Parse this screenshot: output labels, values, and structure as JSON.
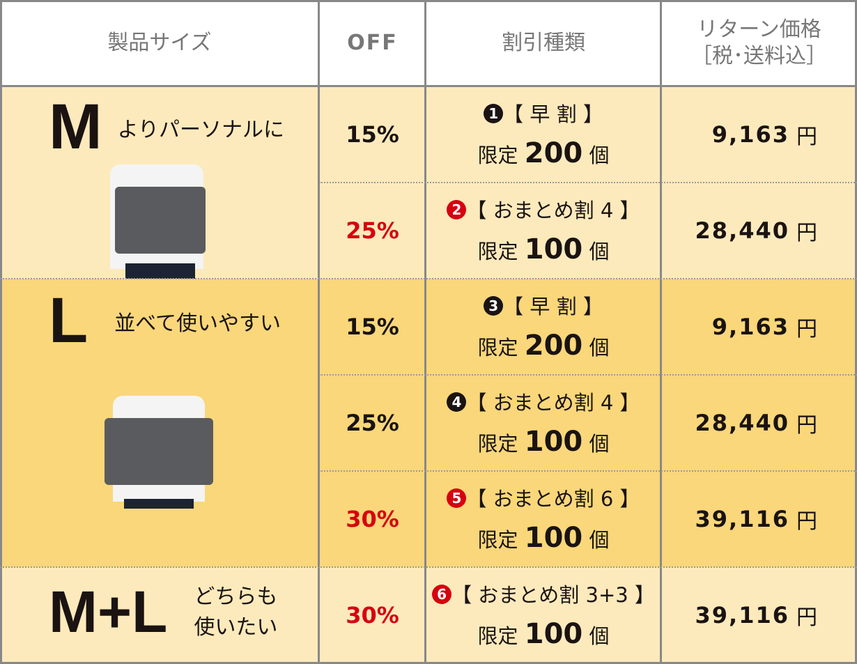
{
  "header": {
    "size": "製品サイズ",
    "off": "OFF",
    "type": "割引種類",
    "price_line1": "リターン価格",
    "price_line2": "［税･送料込］"
  },
  "colors": {
    "light": "#fdeabc",
    "dark": "#f9d77a",
    "border": "#888888",
    "red": "#d7000f",
    "text": "#1a1311"
  },
  "groups": [
    {
      "size": "M",
      "tagline": "よりパーソナルに",
      "image": "person-holding-laptop-case-icon"
    },
    {
      "size": "L",
      "tagline": "並べて使いやすい",
      "image": "person-holding-laptop-case-icon"
    },
    {
      "size": "M+L",
      "tagline_line1": "どちらも",
      "tagline_line2": "使いたい"
    }
  ],
  "rows": [
    {
      "off": "15%",
      "num": "1",
      "label": "【 早 割 】",
      "limit_prefix": "限定",
      "limit": "200",
      "limit_suffix": "個",
      "price": "9,163",
      "currency": "円",
      "highlight": false
    },
    {
      "off": "25%",
      "num": "2",
      "label": "【 おまとめ割 4 】",
      "limit_prefix": "限定",
      "limit": "100",
      "limit_suffix": "個",
      "price": "28,440",
      "currency": "円",
      "highlight": true
    },
    {
      "off": "15%",
      "num": "3",
      "label": "【 早 割 】",
      "limit_prefix": "限定",
      "limit": "200",
      "limit_suffix": "個",
      "price": "9,163",
      "currency": "円",
      "highlight": false
    },
    {
      "off": "25%",
      "num": "4",
      "label": "【 おまとめ割 4 】",
      "limit_prefix": "限定",
      "limit": "100",
      "limit_suffix": "個",
      "price": "28,440",
      "currency": "円",
      "highlight": false
    },
    {
      "off": "30%",
      "num": "5",
      "label": "【 おまとめ割 6 】",
      "limit_prefix": "限定",
      "limit": "100",
      "limit_suffix": "個",
      "price": "39,116",
      "currency": "円",
      "highlight": true
    },
    {
      "off": "30%",
      "num": "6",
      "label": "【 おまとめ割 3+3 】",
      "limit_prefix": "限定",
      "limit": "100",
      "limit_suffix": "個",
      "price": "39,116",
      "currency": "円",
      "highlight": true
    }
  ]
}
